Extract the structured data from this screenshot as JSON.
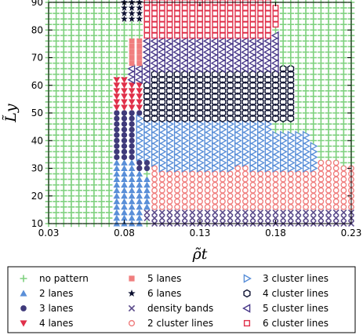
{
  "chart_data": {
    "type": "scatter",
    "title": "",
    "xlabel": "ρ̃t",
    "ylabel": "L̃y",
    "xlim": [
      0.03,
      0.23
    ],
    "ylim": [
      10,
      90
    ],
    "xticks": [
      0.03,
      0.08,
      0.13,
      0.18,
      0.23
    ],
    "xtick_labels": [
      "0.03",
      "0.08",
      "0.13",
      "0.18",
      "0.23"
    ],
    "yticks": [
      10,
      20,
      30,
      40,
      50,
      60,
      70,
      80,
      90
    ],
    "ytick_labels": [
      "10",
      "20",
      "30",
      "40",
      "50",
      "60",
      "70",
      "80",
      "90"
    ],
    "grid": {
      "dx": 0.005,
      "dy": 2
    },
    "grid_visible": false,
    "legend_position": "bottom",
    "series": [
      {
        "name": "no pattern",
        "marker": "plus",
        "color": "#7fd17f",
        "regions": "background"
      },
      {
        "name": "2 lanes",
        "marker": "triangle-up",
        "color": "#5a8fd8",
        "regions": [
          [
            0.075,
            0.09,
            10,
            32
          ],
          [
            0.09,
            0.105,
            16,
            26
          ],
          [
            0.105,
            0.12,
            14,
            18
          ]
        ]
      },
      {
        "name": "3 lanes",
        "marker": "circle-filled",
        "color": "#3f3a7a",
        "regions": [
          [
            0.075,
            0.09,
            34,
            50
          ],
          [
            0.09,
            0.1,
            30,
            42
          ],
          [
            0.1,
            0.105,
            32,
            36
          ]
        ]
      },
      {
        "name": "4 lanes",
        "marker": "triangle-down",
        "color": "#e0304a",
        "regions": [
          [
            0.075,
            0.09,
            52,
            62
          ],
          [
            0.09,
            0.1,
            56,
            60
          ]
        ]
      },
      {
        "name": "5 lanes",
        "marker": "square-filled",
        "color": "#f07e7e",
        "regions": [
          [
            0.085,
            0.095,
            62,
            76
          ]
        ]
      },
      {
        "name": "6 lanes",
        "marker": "star",
        "color": "#0c1030",
        "regions": [
          [
            0.08,
            0.1,
            84,
            90
          ]
        ]
      },
      {
        "name": "density bands",
        "marker": "x",
        "color": "#5a4a8a",
        "regions": [
          [
            0.095,
            0.23,
            12,
            14
          ],
          [
            0.1,
            0.23,
            10,
            10
          ],
          [
            0.1,
            0.145,
            14,
            16
          ]
        ]
      },
      {
        "name": "2 cluster lines",
        "marker": "circle-open",
        "color": "#f07e7e",
        "regions": [
          [
            0.1,
            0.23,
            16,
            30
          ],
          [
            0.2,
            0.22,
            30,
            32
          ]
        ]
      },
      {
        "name": "3 cluster lines",
        "marker": "triangle-right-open",
        "color": "#5a8fd8",
        "regions": [
          [
            0.09,
            0.175,
            34,
            48
          ],
          [
            0.1,
            0.2,
            32,
            42
          ],
          [
            0.165,
            0.205,
            30,
            38
          ],
          [
            0.105,
            0.15,
            30,
            32
          ]
        ]
      },
      {
        "name": "4 cluster lines",
        "marker": "hexagon-open",
        "color": "#0c1030",
        "regions": [
          [
            0.095,
            0.19,
            48,
            66
          ]
        ]
      },
      {
        "name": "5 cluster lines",
        "marker": "triangle-left-open",
        "color": "#4a3a8a",
        "regions": [
          [
            0.095,
            0.18,
            66,
            78
          ],
          [
            0.085,
            0.095,
            62,
            66
          ]
        ]
      },
      {
        "name": "6 cluster lines",
        "marker": "square-open",
        "color": "#e0304a",
        "regions": [
          [
            0.095,
            0.175,
            78,
            90
          ],
          [
            0.175,
            0.18,
            82,
            88
          ]
        ]
      }
    ],
    "legend": [
      [
        "no pattern",
        "5 lanes",
        "3 cluster lines"
      ],
      [
        "2 lanes",
        "6 lanes",
        "4 cluster lines"
      ],
      [
        "3 lanes",
        "density bands",
        "5 cluster lines"
      ],
      [
        "4 lanes",
        "2 cluster lines",
        "6 cluster lines"
      ]
    ]
  }
}
